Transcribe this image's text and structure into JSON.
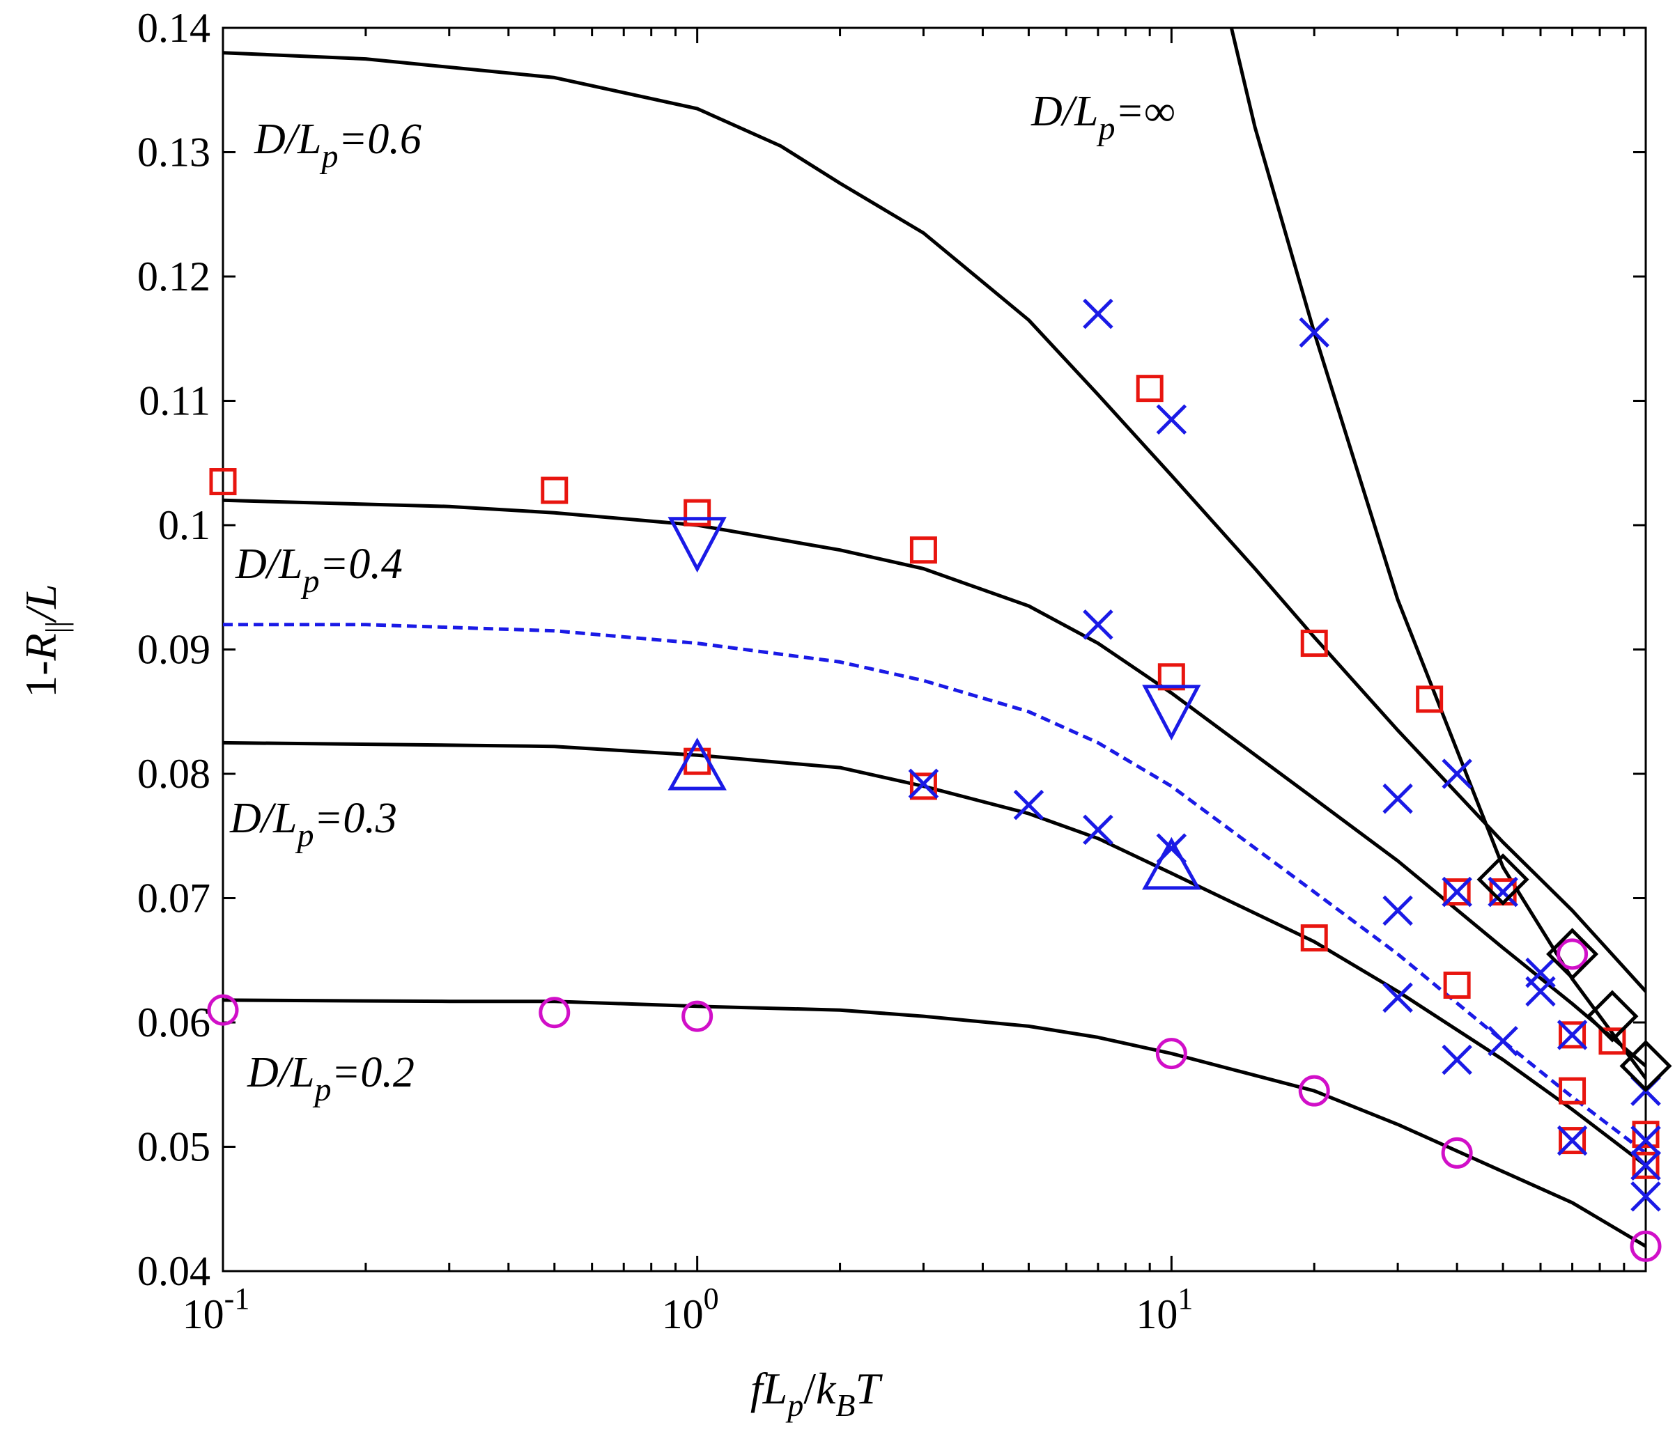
{
  "chart_data": {
    "type": "line",
    "title": "",
    "xscale": "log",
    "xlim": [
      0.1,
      100
    ],
    "ylim": [
      0.04,
      0.14
    ],
    "xlabel": {
      "f": "f",
      "L": "L",
      "p": "p",
      "slash": "/",
      "k": "k",
      "B": "B",
      "T": "T"
    },
    "ylabel": {
      "prefix": "1-",
      "R": "R",
      "sub": "||",
      "suffix": "/L"
    },
    "x_tick_labels": [
      {
        "base": "10",
        "exp": "-1"
      },
      {
        "base": "10",
        "exp": "0"
      },
      {
        "base": "10",
        "exp": "1"
      }
    ],
    "y_tick_labels": [
      "0.04",
      "0.05",
      "0.06",
      "0.07",
      "0.08",
      "0.09",
      "0.1",
      "0.11",
      "0.12",
      "0.13",
      "0.14"
    ],
    "y_tick_values": [
      0.04,
      0.05,
      0.06,
      0.07,
      0.08,
      0.09,
      0.1,
      0.11,
      0.12,
      0.13,
      0.14
    ],
    "annotations": [
      {
        "pre": "D/L",
        "sub": "p",
        "post": "=0.6"
      },
      {
        "pre": "D/L",
        "sub": "p",
        "post": "=0.4"
      },
      {
        "pre": "D/L",
        "sub": "p",
        "post": "=0.3"
      },
      {
        "pre": "D/L",
        "sub": "p",
        "post": "=0.2"
      },
      {
        "pre": "D/L",
        "sub": "p",
        "post": "=∞"
      }
    ],
    "curves": [
      {
        "name": "D/Lp=0.6",
        "style": "solid",
        "color": "#000000",
        "x": [
          0.1,
          0.2,
          0.5,
          1,
          1.5,
          2,
          3,
          5,
          7,
          10,
          15,
          20,
          30,
          50,
          70,
          100
        ],
        "y": [
          0.138,
          0.1375,
          0.136,
          0.1335,
          0.1305,
          0.1275,
          0.1235,
          0.1165,
          0.1105,
          0.104,
          0.0965,
          0.091,
          0.0835,
          0.0745,
          0.069,
          0.0625
        ]
      },
      {
        "name": "D/Lp=0.4",
        "style": "solid",
        "color": "#000000",
        "x": [
          0.1,
          0.3,
          0.5,
          1,
          2,
          3,
          5,
          7,
          10,
          20,
          30,
          50,
          70,
          100
        ],
        "y": [
          0.102,
          0.1015,
          0.101,
          0.1,
          0.098,
          0.0965,
          0.0935,
          0.0905,
          0.0865,
          0.078,
          0.073,
          0.066,
          0.0615,
          0.0565
        ]
      },
      {
        "name": "dashed",
        "style": "dashed",
        "color": "#1a1ae6",
        "x": [
          0.1,
          0.2,
          0.5,
          1,
          2,
          3,
          5,
          7,
          10,
          20,
          30,
          50,
          70,
          100
        ],
        "y": [
          0.092,
          0.092,
          0.0915,
          0.0905,
          0.089,
          0.0875,
          0.085,
          0.0825,
          0.079,
          0.0705,
          0.0655,
          0.0585,
          0.054,
          0.0495
        ]
      },
      {
        "name": "D/Lp=0.3",
        "style": "solid",
        "color": "#000000",
        "x": [
          0.1,
          0.3,
          0.5,
          1,
          2,
          3,
          5,
          7,
          10,
          20,
          30,
          50,
          70,
          100
        ],
        "y": [
          0.0825,
          0.0823,
          0.0822,
          0.0815,
          0.0805,
          0.079,
          0.0768,
          0.0748,
          0.072,
          0.0665,
          0.0625,
          0.057,
          0.053,
          0.0485
        ]
      },
      {
        "name": "D/Lp=0.2",
        "style": "solid",
        "color": "#000000",
        "x": [
          0.1,
          0.3,
          0.5,
          1,
          2,
          3,
          5,
          7,
          10,
          20,
          30,
          50,
          70,
          100
        ],
        "y": [
          0.0618,
          0.0617,
          0.0617,
          0.0613,
          0.061,
          0.0605,
          0.0597,
          0.0588,
          0.0575,
          0.0545,
          0.0518,
          0.048,
          0.0455,
          0.042
        ]
      },
      {
        "name": "D/Lp=inf",
        "style": "solid",
        "color": "#000000",
        "x": [
          13,
          15,
          20,
          30,
          50,
          70,
          100
        ],
        "y": [
          0.142,
          0.132,
          0.1155,
          0.094,
          0.0725,
          0.0635,
          0.0555
        ]
      }
    ],
    "markers": [
      {
        "name": "red-squares",
        "shape": "square",
        "color": "#e8150f",
        "x": [
          0.1,
          0.5,
          1,
          3,
          9,
          10,
          20,
          35,
          50,
          40,
          70,
          40,
          70,
          100,
          100,
          85,
          70
        ],
        "y": [
          0.1035,
          0.1028,
          0.101,
          0.098,
          0.111,
          0.0878,
          0.0905,
          0.086,
          0.0705,
          0.0705,
          0.059,
          0.063,
          0.0545,
          0.051,
          0.0485,
          0.0585,
          0.0505
        ]
      },
      {
        "name": "red-squares-2",
        "shape": "square",
        "color": "#e8150f",
        "x": [
          1,
          3,
          20
        ],
        "y": [
          0.081,
          0.079,
          0.0668
        ]
      },
      {
        "name": "blue-crosses",
        "shape": "x",
        "color": "#1a1ae6",
        "x": [
          7,
          20,
          10,
          7,
          3,
          5,
          7,
          10,
          30,
          40,
          30,
          40,
          50,
          30,
          40,
          50,
          60,
          70,
          100,
          100,
          100,
          100,
          70,
          60
        ],
        "y": [
          0.117,
          0.1155,
          0.1085,
          0.092,
          0.0792,
          0.0775,
          0.0755,
          0.074,
          0.078,
          0.08,
          0.069,
          0.0705,
          0.0705,
          0.062,
          0.057,
          0.0585,
          0.064,
          0.059,
          0.0545,
          0.0505,
          0.0485,
          0.046,
          0.0505,
          0.0625
        ]
      },
      {
        "name": "blue-triangles-down",
        "shape": "triangle-down",
        "color": "#1a1ae6",
        "x": [
          1,
          10
        ],
        "y": [
          0.0985,
          0.085
        ]
      },
      {
        "name": "blue-triangles-up",
        "shape": "triangle-up",
        "color": "#1a1ae6",
        "x": [
          1,
          10
        ],
        "y": [
          0.0805,
          0.0725
        ]
      },
      {
        "name": "magenta-circles",
        "shape": "circle",
        "color": "#d10fc8",
        "x": [
          0.1,
          0.5,
          1,
          10,
          20,
          40,
          70,
          100
        ],
        "y": [
          0.061,
          0.0608,
          0.0605,
          0.0575,
          0.0545,
          0.0495,
          0.0655,
          0.042
        ]
      },
      {
        "name": "black-diamonds",
        "shape": "diamond",
        "color": "#000000",
        "x": [
          50,
          70,
          85,
          100
        ],
        "y": [
          0.0715,
          0.0655,
          0.0605,
          0.0565
        ]
      }
    ]
  }
}
